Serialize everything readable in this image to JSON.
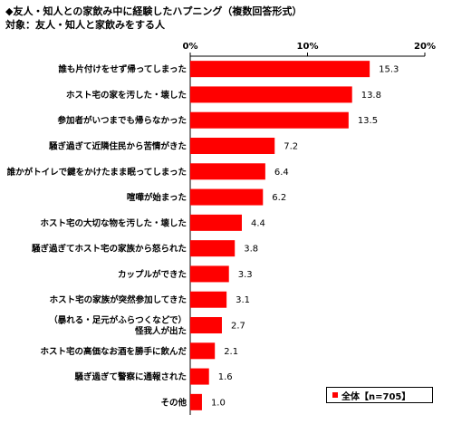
{
  "header": {
    "title": "◆友人・知人との家飲み中に経験したハプニング（複数回答形式）",
    "subtitle": "対象：友人・知人と家飲みをする人"
  },
  "legend": {
    "label": "全体【n=705】"
  },
  "colors": {
    "bar": "#ff0000"
  },
  "chart_data": {
    "type": "bar",
    "orientation": "horizontal",
    "title": "◆友人・知人との家飲み中に経験したハプニング（複数回答形式）",
    "subtitle": "対象：友人・知人と家飲みをする人",
    "xlim": [
      0,
      20
    ],
    "ticks": [
      0,
      10,
      20
    ],
    "tick_labels": [
      "0%",
      "10%",
      "20%"
    ],
    "categories": [
      "誰も片付けをせず帰ってしまった",
      "ホスト宅の家を汚した・壊した",
      "参加者がいつまでも帰らなかった",
      "騒ぎ過ぎて近隣住民から苦情がきた",
      "誰かがトイレで鍵をかけたまま眠ってしまった",
      "喧嘩が始まった",
      "ホスト宅の大切な物を汚した・壊した",
      "騒ぎ過ぎてホスト宅の家族から怒られた",
      "カップルができた",
      "ホスト宅の家族が突然参加してきた",
      [
        "（暴れる・足元がふらつくなどで）",
        "怪我人が出た"
      ],
      "ホスト宅の高価なお酒を勝手に飲んだ",
      "騒ぎ過ぎて警察に通報された",
      "その他"
    ],
    "series": [
      {
        "name": "全体【n=705】",
        "values": [
          15.3,
          13.8,
          13.5,
          7.2,
          6.4,
          6.2,
          4.4,
          3.8,
          3.3,
          3.1,
          2.7,
          2.1,
          1.6,
          1.0
        ],
        "value_labels": [
          "15.3",
          "13.8",
          "13.5",
          "7.2",
          "6.4",
          "6.2",
          "4.4",
          "3.8",
          "3.3",
          "3.1",
          "2.7",
          "2.1",
          "1.6",
          "1.0"
        ]
      }
    ],
    "grid": false,
    "legend_position": "bottom-right"
  }
}
